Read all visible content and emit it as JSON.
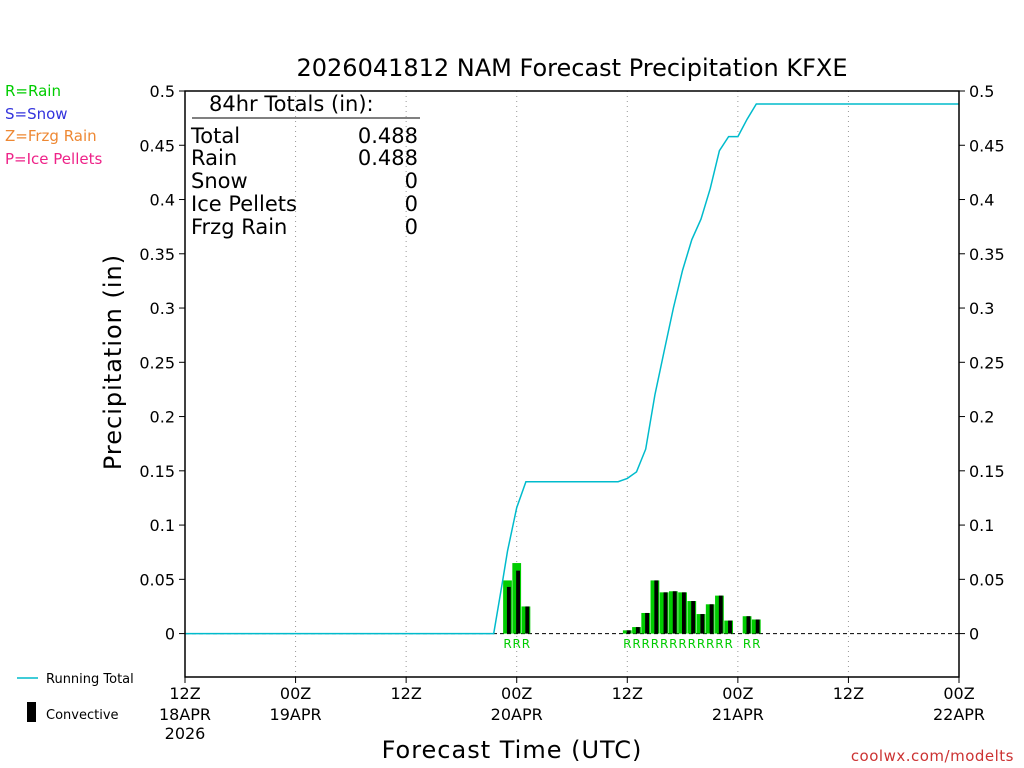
{
  "chart_data": {
    "type": "bar",
    "title": "2026041812 NAM Forecast Precipitation KFXE",
    "xlabel": "Forecast Time (UTC)",
    "ylabel": "Precipitation (in)",
    "ylim": [
      -0.04,
      0.5
    ],
    "yticks": [
      0,
      0.05,
      0.1,
      0.15,
      0.2,
      0.25,
      0.3,
      0.35,
      0.4,
      0.45,
      0.5
    ],
    "ytick_labels": [
      "0",
      "0.05",
      "0.1",
      "0.15",
      "0.2",
      "0.25",
      "0.3",
      "0.35",
      "0.4",
      "0.45",
      "0.5"
    ],
    "xlim_hours": [
      0,
      84
    ],
    "xticks": [
      {
        "hour": 0,
        "line1": "12Z",
        "line2": "18APR",
        "line3": "2026"
      },
      {
        "hour": 12,
        "line1": "00Z",
        "line2": "19APR",
        "line3": ""
      },
      {
        "hour": 24,
        "line1": "12Z",
        "line2": "",
        "line3": ""
      },
      {
        "hour": 36,
        "line1": "00Z",
        "line2": "20APR",
        "line3": ""
      },
      {
        "hour": 48,
        "line1": "12Z",
        "line2": "",
        "line3": ""
      },
      {
        "hour": 60,
        "line1": "00Z",
        "line2": "21APR",
        "line3": ""
      },
      {
        "hour": 72,
        "line1": "12Z",
        "line2": "",
        "line3": ""
      },
      {
        "hour": 84,
        "line1": "00Z",
        "line2": "22APR",
        "line3": ""
      }
    ],
    "series": [
      {
        "name": "Rain",
        "color": "#00cc00",
        "hours": [
          35,
          36,
          37,
          48,
          49,
          50,
          51,
          52,
          53,
          54,
          55,
          56,
          57,
          58,
          59,
          61,
          62
        ],
        "values": [
          0.049,
          0.065,
          0.025,
          0.003,
          0.006,
          0.019,
          0.049,
          0.038,
          0.039,
          0.038,
          0.03,
          0.018,
          0.027,
          0.035,
          0.012,
          0.016,
          0.013
        ]
      },
      {
        "name": "Convective",
        "color": "#000000",
        "hours": [
          35,
          36,
          37,
          48,
          49,
          50,
          51,
          52,
          53,
          54,
          55,
          56,
          57,
          58,
          59,
          61,
          62
        ],
        "values": [
          0.043,
          0.058,
          0.025,
          0.003,
          0.006,
          0.019,
          0.049,
          0.038,
          0.039,
          0.038,
          0.03,
          0.018,
          0.027,
          0.035,
          0.012,
          0.016,
          0.013
        ]
      },
      {
        "name": "Running Total",
        "color": "#00bbcc",
        "hours": [
          0,
          33.5,
          34.5,
          35,
          36,
          37,
          47,
          48,
          49,
          50,
          51,
          52,
          53,
          54,
          55,
          56,
          57,
          58,
          59,
          60,
          61,
          62,
          84
        ],
        "values": [
          0,
          0,
          0.05,
          0.076,
          0.116,
          0.14,
          0.14,
          0.143,
          0.149,
          0.17,
          0.22,
          0.26,
          0.3,
          0.335,
          0.363,
          0.382,
          0.41,
          0.445,
          0.458,
          0.458,
          0.474,
          0.488,
          0.488
        ]
      }
    ],
    "ptype_labels": {
      "color": "#00cc00",
      "groups": [
        {
          "start_hour": 35,
          "text": "RRR"
        },
        {
          "start_hour": 48,
          "text": "RRRRRRRRRRRR"
        },
        {
          "start_hour": 61,
          "text": "RR"
        }
      ]
    },
    "legend": {
      "placement": "left",
      "ptype_items": [
        {
          "label": "R=Rain",
          "color": "#00cc00"
        },
        {
          "label": "S=Snow",
          "color": "#3333dd"
        },
        {
          "label": "Z=Frzg Rain",
          "color": "#ee8833"
        },
        {
          "label": "P=Ice Pellets",
          "color": "#ee2288"
        }
      ],
      "running_total_label": "Running Total",
      "convective_label": "Convective"
    },
    "totals_box": {
      "heading": "84hr Totals (in):",
      "rows": [
        {
          "label": "Total",
          "value": "0.488"
        },
        {
          "label": "Rain",
          "value": "0.488"
        },
        {
          "label": "Snow",
          "value": "0"
        },
        {
          "label": "Ice Pellets",
          "value": "0"
        },
        {
          "label": "Frzg Rain",
          "value": "0"
        }
      ]
    },
    "credit": "coolwx.com/modelts",
    "credit_color": "#cc3333"
  }
}
